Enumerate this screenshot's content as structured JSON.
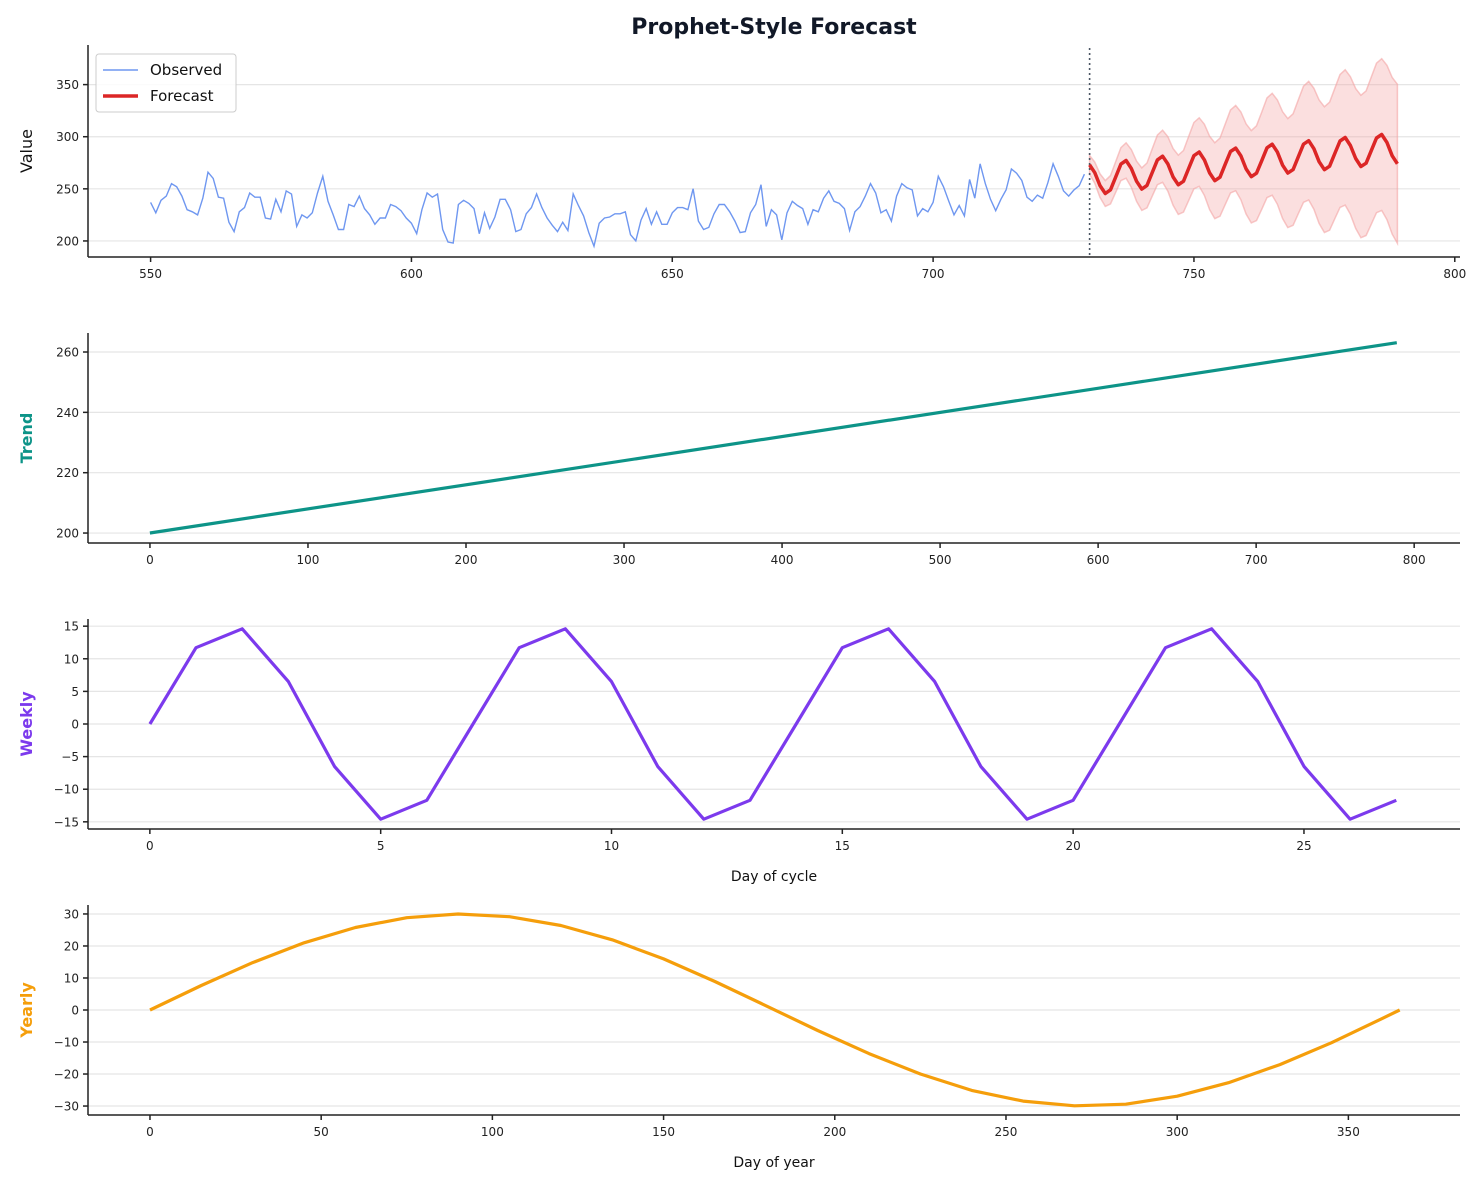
{
  "title": "Prophet-Style Forecast",
  "colors": {
    "observed": "#6f97f0",
    "forecast": "#dc2626",
    "band": "#f4a3a3",
    "trend": "#0d9488",
    "weekly": "#7c3aed",
    "yearly": "#f59e0b",
    "cutoff": "#4b5563"
  },
  "legend": {
    "observed": "Observed",
    "forecast": "Forecast",
    "placement": "top-left"
  },
  "chart_data": [
    {
      "type": "line",
      "ylabel": "Value",
      "xlabel": "",
      "xlim": [
        538,
        801
      ],
      "ylim": [
        184.6,
        388
      ],
      "xticks": [
        550,
        600,
        650,
        700,
        750,
        800
      ],
      "yticks": [
        200,
        250,
        300,
        350
      ],
      "grid": true,
      "cutoff_x": 730,
      "observed": {
        "name": "Observed",
        "x_start": 550,
        "values": [
          237,
          227,
          239,
          243,
          255,
          252,
          243,
          230,
          228,
          225,
          241,
          266,
          260,
          242,
          241,
          218,
          209,
          228,
          232,
          246,
          242,
          242,
          222,
          221,
          240,
          228,
          248,
          245,
          214,
          225,
          222,
          227,
          246,
          262,
          238,
          225,
          211,
          211,
          235,
          233,
          243,
          231,
          225,
          216,
          222,
          222,
          235,
          233,
          229,
          222,
          217,
          207,
          230,
          246,
          242,
          245,
          211,
          199,
          198,
          235,
          239,
          236,
          231,
          207,
          227,
          212,
          223,
          240,
          240,
          230,
          209,
          211,
          226,
          232,
          245,
          232,
          222,
          215,
          209,
          218,
          210,
          245,
          234,
          224,
          208,
          195,
          217,
          222,
          223,
          226,
          226,
          228,
          206,
          200,
          220,
          231,
          216,
          228,
          216,
          216,
          227,
          232,
          232,
          230,
          250,
          219,
          211,
          213,
          226,
          235,
          235,
          228,
          219,
          208,
          209,
          227,
          235,
          254,
          214,
          230,
          225,
          201,
          227,
          238,
          234,
          231,
          216,
          230,
          228,
          241,
          248,
          238,
          236,
          231,
          210,
          228,
          233,
          243,
          255,
          246,
          227,
          230,
          219,
          243,
          255,
          251,
          249,
          224,
          231,
          228,
          237,
          262,
          252,
          238,
          225,
          234,
          224,
          259,
          241,
          274,
          255,
          240,
          229,
          240,
          249,
          269,
          265,
          258,
          242,
          238,
          244,
          241,
          256,
          274,
          262,
          248,
          243,
          249,
          253,
          264
        ]
      },
      "forecast": {
        "name": "Forecast",
        "x_start": 730,
        "values": [
          273.0,
          265.5,
          253.1,
          245.5,
          249.1,
          261.4,
          273.7,
          277.2,
          269.6,
          257.2,
          249.7,
          253.3,
          265.6,
          277.8,
          281.3,
          273.8,
          261.4,
          253.9,
          257.3,
          269.6,
          281.8,
          285.3,
          277.8,
          265.3,
          257.8,
          261.2,
          273.5,
          285.8,
          289.1,
          281.6,
          269.1,
          261.6,
          265.0,
          277.1,
          289.4,
          292.8,
          285.2,
          272.7,
          265.1,
          268.5,
          280.7,
          292.8,
          296.2,
          288.5,
          276.0,
          268.4,
          271.7,
          283.9,
          295.9,
          299.3,
          291.6,
          279.1,
          271.4,
          274.6,
          286.7,
          298.8,
          302.1,
          294.4,
          281.7,
          274.0
        ],
        "upper": [
          282.0,
          275.6,
          264.4,
          257.9,
          262.7,
          276.1,
          289.5,
          294.2,
          287.7,
          276.5,
          270.1,
          274.8,
          288.3,
          301.6,
          306.3,
          299.9,
          288.6,
          282.3,
          286.8,
          300.3,
          313.6,
          318.2,
          311.9,
          300.5,
          294.2,
          298.7,
          312.1,
          325.6,
          330.0,
          323.7,
          312.3,
          305.9,
          310.5,
          323.7,
          337.2,
          341.7,
          335.2,
          323.9,
          317.4,
          322.0,
          335.3,
          348.5,
          353.1,
          346.5,
          335.2,
          328.7,
          333.1,
          346.5,
          359.6,
          364.2,
          357.6,
          346.2,
          339.7,
          344.0,
          357.3,
          370.5,
          374.9,
          368.4,
          356.8,
          350.3
        ],
        "lower": [
          264.0,
          255.4,
          241.8,
          233.1,
          235.5,
          246.7,
          257.9,
          260.2,
          251.5,
          237.9,
          229.3,
          231.8,
          242.9,
          254.0,
          256.3,
          247.7,
          234.2,
          225.5,
          227.8,
          238.9,
          250.0,
          252.4,
          243.7,
          230.1,
          221.4,
          223.7,
          234.9,
          246.0,
          248.2,
          239.5,
          225.9,
          217.3,
          219.5,
          230.5,
          241.6,
          243.9,
          235.2,
          221.5,
          212.8,
          215.0,
          226.1,
          237.1,
          239.3,
          230.5,
          216.8,
          208.1,
          210.3,
          221.3,
          232.2,
          234.4,
          225.6,
          212.0,
          203.1,
          205.2,
          216.1,
          227.1,
          229.3,
          220.4,
          206.6,
          197.7
        ]
      }
    },
    {
      "type": "line",
      "ylabel": "Trend",
      "xlabel": "",
      "xlim": [
        -39.2,
        829
      ],
      "ylim": [
        196.7,
        266.3
      ],
      "xticks": [
        0,
        100,
        200,
        300,
        400,
        500,
        600,
        700,
        800
      ],
      "yticks": [
        200,
        220,
        240,
        260
      ],
      "grid": true,
      "x": [
        0,
        789
      ],
      "values": [
        200,
        263.1
      ]
    },
    {
      "type": "line",
      "ylabel": "Weekly",
      "xlabel": "Day of cycle",
      "xlim": [
        -1.34,
        28.38
      ],
      "ylim": [
        -16.1,
        16.1
      ],
      "xticks": [
        0,
        5,
        10,
        15,
        20,
        25
      ],
      "yticks": [
        -15,
        -10,
        -5,
        0,
        5,
        10,
        15
      ],
      "grid": true,
      "x_start": 0,
      "values": [
        0,
        11.7,
        14.6,
        6.5,
        -6.5,
        -14.6,
        -11.7,
        0,
        11.7,
        14.6,
        6.5,
        -6.5,
        -14.6,
        -11.7,
        0,
        11.7,
        14.6,
        6.5,
        -6.5,
        -14.6,
        -11.7,
        0,
        11.7,
        14.6,
        6.5,
        -6.5,
        -14.6,
        -11.7
      ]
    },
    {
      "type": "line",
      "ylabel": "Yearly",
      "xlabel": "Day of year",
      "xlim": [
        -18.1,
        382.6
      ],
      "ylim": [
        -32.8,
        32.8
      ],
      "xticks": [
        0,
        50,
        100,
        150,
        200,
        250,
        300,
        350
      ],
      "yticks": [
        -30,
        -20,
        -10,
        0,
        10,
        20,
        30
      ],
      "grid": true,
      "x": [
        0,
        15,
        30,
        45,
        60,
        75,
        90,
        105,
        120,
        135,
        150,
        165,
        180,
        195,
        210,
        225,
        240,
        255,
        270,
        285,
        300,
        315,
        330,
        345,
        360,
        365
      ],
      "values": [
        0,
        7.66,
        14.81,
        20.99,
        25.77,
        28.83,
        29.99,
        29.16,
        26.4,
        21.92,
        15.95,
        8.91,
        1.29,
        -6.39,
        -13.61,
        -20.0,
        -25.11,
        -28.46,
        -29.93,
        -29.42,
        -26.93,
        -22.71,
        -17.05,
        -10.26,
        -2.58,
        0
      ]
    }
  ]
}
